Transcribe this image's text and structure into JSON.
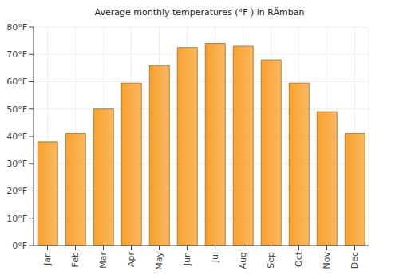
{
  "chart_data": {
    "type": "bar",
    "title": "Average monthly temperatures (°F ) in RÄmban",
    "categories": [
      "Jan",
      "Feb",
      "Mar",
      "Apr",
      "May",
      "Jun",
      "Jul",
      "Aug",
      "Sep",
      "Oct",
      "Nov",
      "Dec"
    ],
    "values": [
      38,
      41,
      50,
      59.5,
      66,
      72.5,
      74,
      73,
      68,
      59.5,
      49,
      41
    ],
    "color": "#f9a12e",
    "ylim": [
      0,
      80
    ],
    "yticks": [
      {
        "value": 0,
        "label": "0°F"
      },
      {
        "value": 10,
        "label": "10°F"
      },
      {
        "value": 20,
        "label": "20°F"
      },
      {
        "value": 30,
        "label": "30°F"
      },
      {
        "value": 40,
        "label": "40°F"
      },
      {
        "value": 50,
        "label": "50°F"
      },
      {
        "value": 60,
        "label": "60°F"
      },
      {
        "value": 70,
        "label": "70°F"
      },
      {
        "value": 80,
        "label": "80°F"
      }
    ],
    "grid": true
  }
}
